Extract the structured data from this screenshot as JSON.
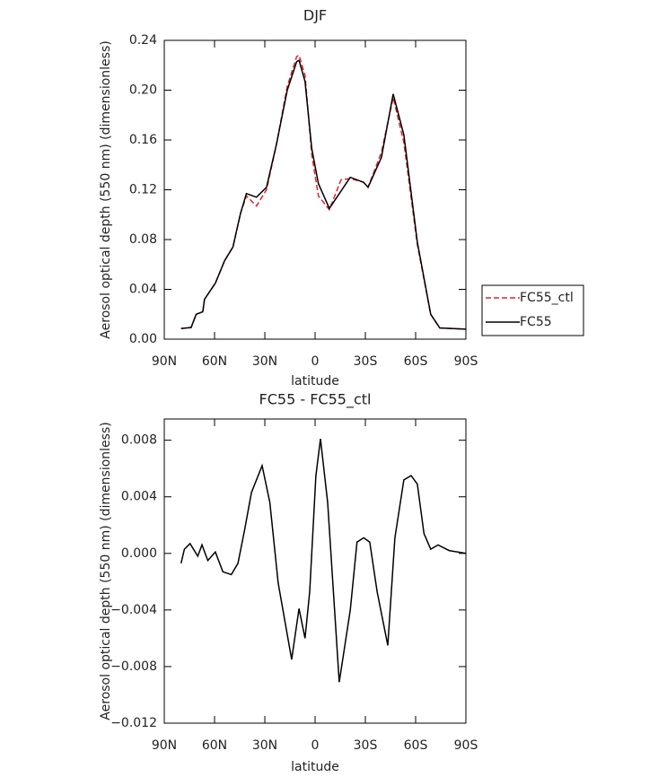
{
  "chart_data": [
    {
      "type": "line",
      "title": "DJF",
      "x_label": "latitude",
      "y_label": "Aerosol optical depth (550 nm) (dimensionless)",
      "x": [
        80,
        74,
        71,
        67,
        66,
        59.5,
        54,
        49,
        44.5,
        41,
        35,
        29,
        23,
        16.6,
        11,
        9.6,
        6,
        2,
        -2,
        -8.5,
        -15.5,
        -21,
        -29,
        -31.6,
        -39.6,
        -46.6,
        -53,
        -61,
        -69,
        -74.4,
        -90
      ],
      "series": [
        {
          "name": "FC55_ctl",
          "color": "#e8202a",
          "line_style": "dashed",
          "values": [
            0.0086,
            0.0094,
            0.02,
            0.022,
            0.032,
            0.045,
            0.063,
            0.074,
            0.101,
            0.115,
            0.107,
            0.12,
            0.157,
            0.203,
            0.227,
            0.228,
            0.212,
            0.148,
            0.115,
            0.104,
            0.128,
            0.129,
            0.126,
            0.122,
            0.15,
            0.194,
            0.158,
            0.076,
            0.02,
            0.009,
            0.008
          ]
        },
        {
          "name": "FC55",
          "color": "#000000",
          "line_style": "solid",
          "values": [
            0.0086,
            0.0094,
            0.02,
            0.022,
            0.032,
            0.045,
            0.063,
            0.074,
            0.101,
            0.117,
            0.114,
            0.122,
            0.157,
            0.2,
            0.223,
            0.224,
            0.207,
            0.153,
            0.125,
            0.105,
            0.119,
            0.13,
            0.126,
            0.122,
            0.146,
            0.197,
            0.164,
            0.078,
            0.02,
            0.009,
            0.008
          ]
        }
      ],
      "xlim": [
        90,
        -90
      ],
      "xticks": [
        {
          "value": 90,
          "label": "90N"
        },
        {
          "value": 60,
          "label": "60N"
        },
        {
          "value": 30,
          "label": "30N"
        },
        0,
        {
          "value": -30,
          "label": "30S"
        },
        {
          "value": -60,
          "label": "60S"
        },
        {
          "value": -90,
          "label": "90S"
        }
      ],
      "ylim": [
        0,
        0.24
      ],
      "yticks": [
        {
          "value": 0,
          "label": "0.00"
        },
        {
          "value": 0.04,
          "label": "0.04"
        },
        {
          "value": 0.08,
          "label": "0.08"
        },
        {
          "value": 0.12,
          "label": "0.12"
        },
        {
          "value": 0.16,
          "label": "0.16"
        },
        {
          "value": 0.2,
          "label": "0.20"
        },
        {
          "value": 0.24,
          "label": "0.24"
        }
      ],
      "legend": "outside-right"
    },
    {
      "type": "line",
      "title": "FC55 - FC55_ctl",
      "x_label": "latitude",
      "y_label": "Aerosol optical depth (550 nm) (dimensionless)",
      "x": [
        80,
        78,
        74.6,
        70,
        67.5,
        64,
        59.5,
        55,
        50,
        46,
        42,
        38,
        31.6,
        27,
        22,
        14,
        9.6,
        6,
        3.2,
        -0.5,
        -3.2,
        -7.5,
        -14.4,
        -21,
        -25,
        -29,
        -32.6,
        -37,
        -43.4,
        -47.6,
        -53,
        -57.3,
        -61,
        -65,
        -69,
        -73.4,
        -80,
        -90
      ],
      "series": [
        {
          "name": "FC55 - FC55_ctl",
          "color": "#000000",
          "line_style": "solid",
          "values": [
            -0.0007,
            0.0003,
            0.0007,
            -0.0002,
            0.0006,
            -0.0005,
            0.0001,
            -0.0013,
            -0.0015,
            -0.0007,
            0.0017,
            0.0043,
            0.0062,
            0.0036,
            -0.0021,
            -0.0075,
            -0.0039,
            -0.006,
            -0.0027,
            0.0055,
            0.0081,
            0.0036,
            -0.0091,
            -0.004,
            0.0008,
            0.0011,
            0.0008,
            -0.0027,
            -0.0065,
            0.0011,
            0.0052,
            0.0055,
            0.0049,
            0.0014,
            0.0003,
            0.0006,
            0.0002,
            0
          ]
        }
      ],
      "xlim": [
        90,
        -90
      ],
      "xticks": [
        {
          "value": 90,
          "label": "90N"
        },
        {
          "value": 60,
          "label": "60N"
        },
        {
          "value": 30,
          "label": "30N"
        },
        0,
        {
          "value": -30,
          "label": "30S"
        },
        {
          "value": -60,
          "label": "60S"
        },
        {
          "value": -90,
          "label": "90S"
        }
      ],
      "ylim": [
        -0.012,
        0.0095
      ],
      "yticks": [
        {
          "value": -0.012,
          "label": "−0.012"
        },
        {
          "value": -0.008,
          "label": "−0.008"
        },
        {
          "value": -0.004,
          "label": "−0.004"
        },
        {
          "value": 0,
          "label": "0.000"
        },
        {
          "value": 0.004,
          "label": "0.004"
        },
        {
          "value": 0.008,
          "label": "0.008"
        }
      ]
    }
  ]
}
